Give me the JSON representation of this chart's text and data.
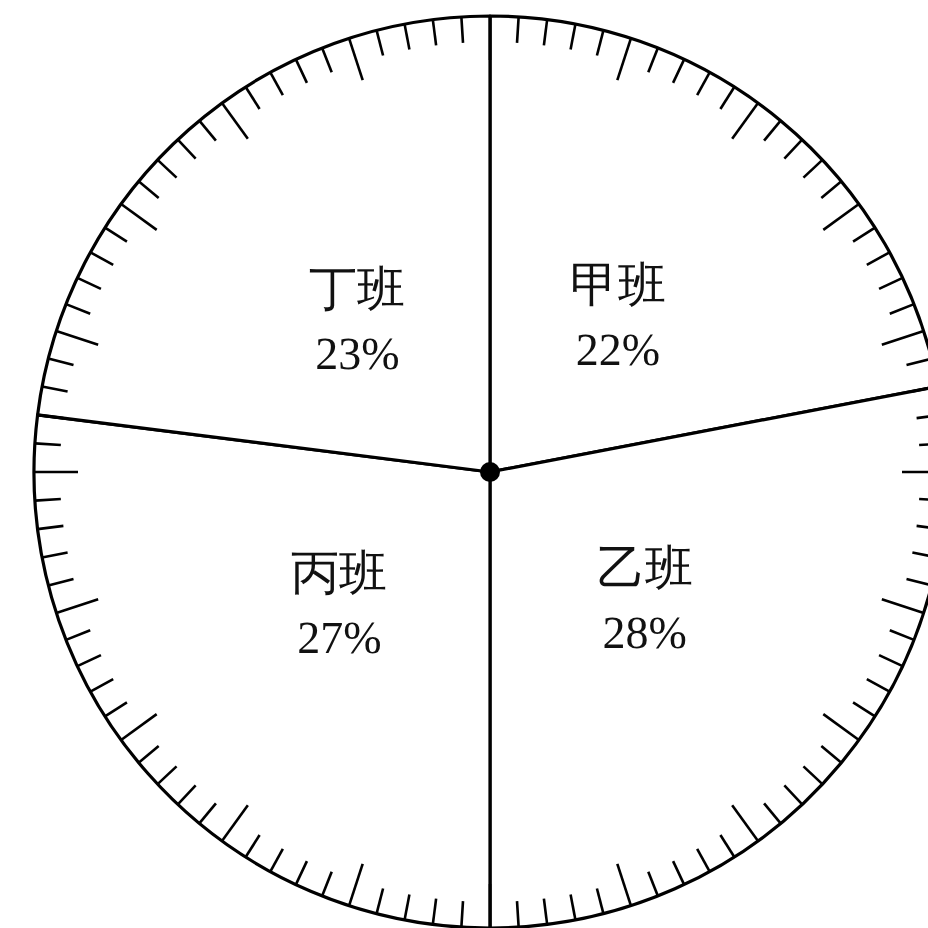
{
  "chart_data": {
    "type": "pie",
    "categories": [
      "甲班",
      "乙班",
      "丙班",
      "丁班"
    ],
    "values": [
      22,
      28,
      27,
      23
    ],
    "colors": [
      "#ffffff",
      "#ffffff",
      "#ffffff",
      "#ffffff"
    ],
    "value_labels": [
      "22%",
      "28%",
      "27%",
      "23%"
    ]
  }
}
